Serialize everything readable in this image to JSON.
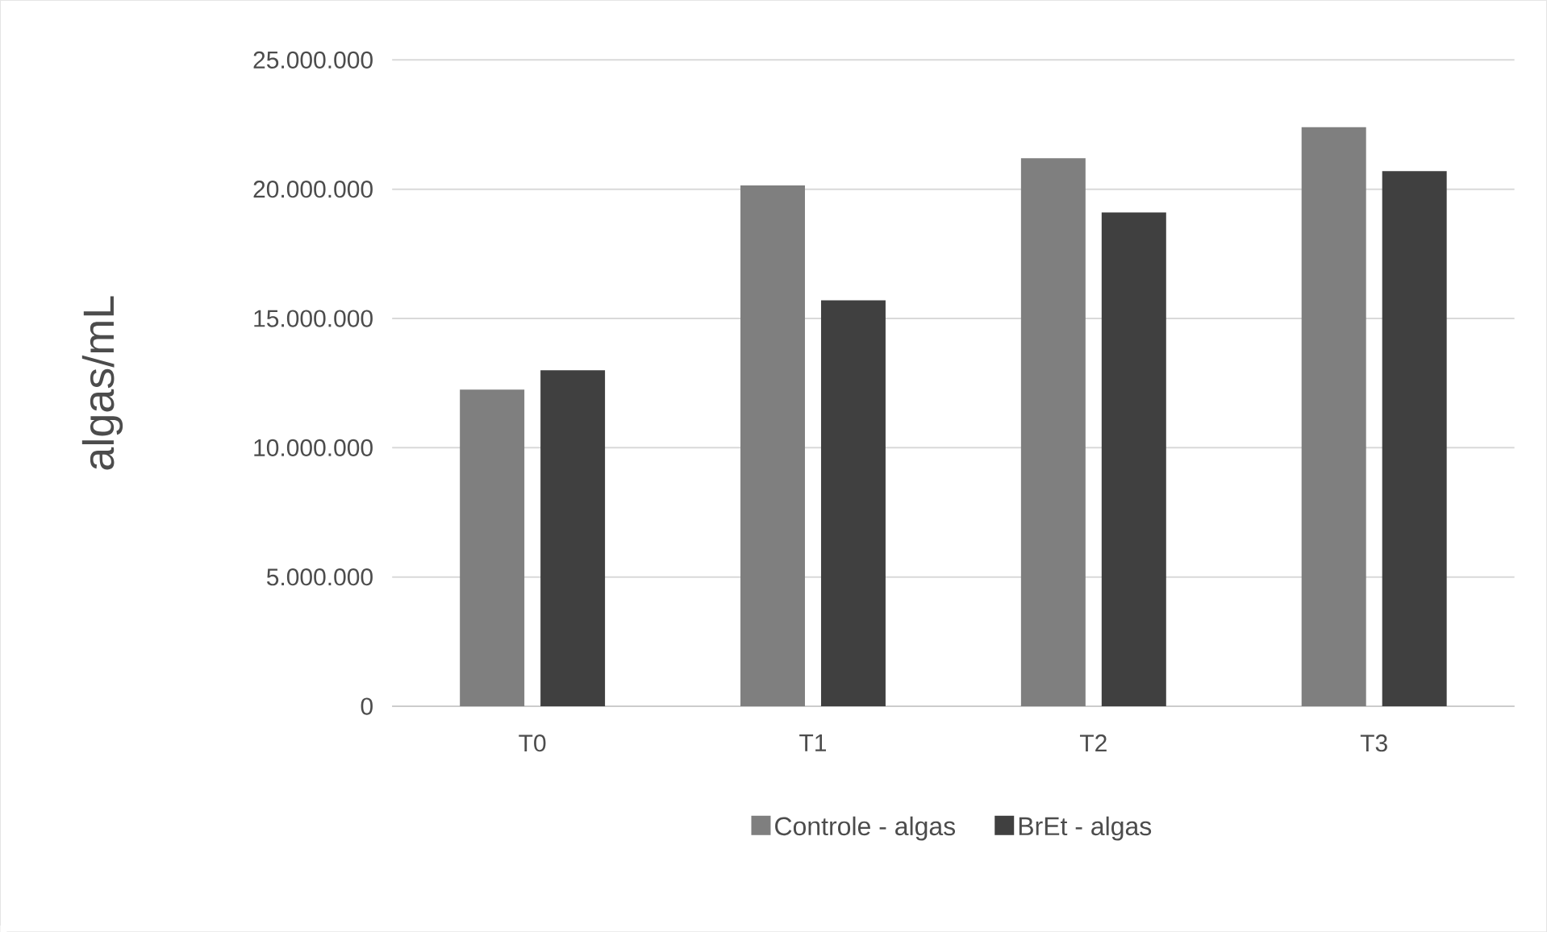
{
  "chart_data": {
    "type": "bar",
    "ylabel": "algas/mL",
    "categories": [
      "T0",
      "T1",
      "T2",
      "T3"
    ],
    "series": [
      {
        "name": "Controle - algas",
        "color": "#7f7f7f",
        "values": [
          12250000,
          20150000,
          21200000,
          22400000
        ]
      },
      {
        "name": "BrEt - algas",
        "color": "#404040",
        "values": [
          13000000,
          15700000,
          19100000,
          20700000
        ]
      }
    ],
    "ylim": [
      0,
      25000000
    ],
    "yticks": [
      {
        "value": 0,
        "label": "0"
      },
      {
        "value": 5000000,
        "label": "5.000.000"
      },
      {
        "value": 10000000,
        "label": "10.000.000"
      },
      {
        "value": 15000000,
        "label": "15.000.000"
      },
      {
        "value": 20000000,
        "label": "20.000.000"
      },
      {
        "value": 25000000,
        "label": "25.000.000"
      }
    ],
    "grid": "y",
    "legend": "bottom"
  }
}
